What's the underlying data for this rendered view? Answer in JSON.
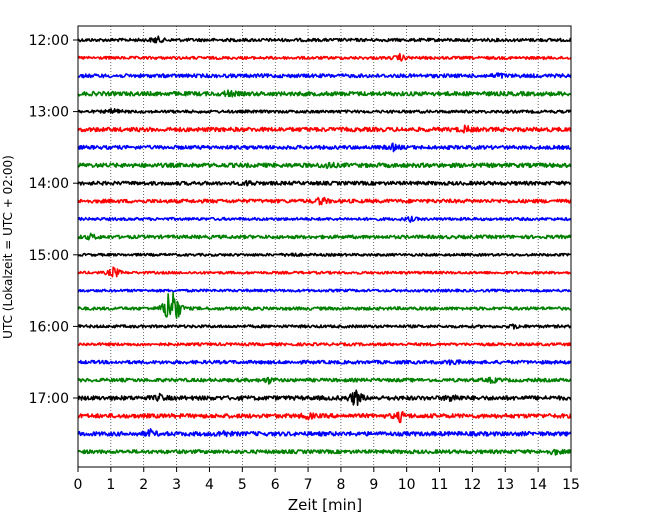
{
  "chart_data": {
    "type": "line",
    "title": "",
    "xlabel": "Zeit  [min]",
    "ylabel": "UTC (Lokalzeit = UTC + 02:00)",
    "xlim": [
      0,
      15
    ],
    "x_ticks": [
      "0",
      "1",
      "2",
      "3",
      "4",
      "5",
      "6",
      "7",
      "8",
      "9",
      "10",
      "11",
      "12",
      "13",
      "14",
      "15"
    ],
    "y_tick_labels": [
      "12:00",
      "13:00",
      "14:00",
      "15:00",
      "16:00",
      "17:00"
    ],
    "grid": "vertical dotted lines at each minute",
    "trace_interval_minutes": 15,
    "traces": [
      {
        "start": "12:00",
        "color": "#000000",
        "amplitude": 0.22,
        "events": [
          {
            "x": 2.4,
            "amp": 0.5
          }
        ]
      },
      {
        "start": "12:15",
        "color": "#ff0000",
        "amplitude": 0.2,
        "events": [
          {
            "x": 9.8,
            "amp": 0.45
          }
        ]
      },
      {
        "start": "12:30",
        "color": "#0000ff",
        "amplitude": 0.26,
        "events": [
          {
            "x": 12.8,
            "amp": 0.35
          }
        ]
      },
      {
        "start": "12:45",
        "color": "#008000",
        "amplitude": 0.3,
        "events": [
          {
            "x": 4.6,
            "amp": 0.4
          }
        ]
      },
      {
        "start": "13:00",
        "color": "#000000",
        "amplitude": 0.2,
        "events": [
          {
            "x": 1.1,
            "amp": 0.45
          }
        ]
      },
      {
        "start": "13:15",
        "color": "#ff0000",
        "amplitude": 0.3,
        "events": [
          {
            "x": 11.8,
            "amp": 0.45
          }
        ]
      },
      {
        "start": "13:30",
        "color": "#0000ff",
        "amplitude": 0.26,
        "events": [
          {
            "x": 9.6,
            "amp": 0.4
          }
        ]
      },
      {
        "start": "13:45",
        "color": "#008000",
        "amplitude": 0.3,
        "events": [
          {
            "x": 7.6,
            "amp": 0.45
          }
        ]
      },
      {
        "start": "14:00",
        "color": "#000000",
        "amplitude": 0.26,
        "events": [
          {
            "x": 5.2,
            "amp": 0.35
          }
        ]
      },
      {
        "start": "14:15",
        "color": "#ff0000",
        "amplitude": 0.26,
        "events": [
          {
            "x": 7.4,
            "amp": 0.6
          }
        ]
      },
      {
        "start": "14:30",
        "color": "#0000ff",
        "amplitude": 0.2,
        "events": [
          {
            "x": 10.1,
            "amp": 0.3
          }
        ]
      },
      {
        "start": "14:45",
        "color": "#008000",
        "amplitude": 0.24,
        "events": [
          {
            "x": 0.4,
            "amp": 0.35
          }
        ]
      },
      {
        "start": "15:00",
        "color": "#000000",
        "amplitude": 0.18,
        "events": [
          {
            "x": 6.5,
            "amp": 0.3
          }
        ]
      },
      {
        "start": "15:15",
        "color": "#ff0000",
        "amplitude": 0.18,
        "events": [
          {
            "x": 1.1,
            "amp": 0.9
          }
        ]
      },
      {
        "start": "15:30",
        "color": "#0000ff",
        "amplitude": 0.18,
        "events": []
      },
      {
        "start": "15:45",
        "color": "#008000",
        "amplitude": 0.22,
        "events": [
          {
            "x": 2.75,
            "amp": 2.4
          },
          {
            "x": 2.95,
            "amp": 2.6
          }
        ]
      },
      {
        "start": "16:00",
        "color": "#000000",
        "amplitude": 0.2,
        "events": [
          {
            "x": 13.3,
            "amp": 0.3
          }
        ]
      },
      {
        "start": "16:15",
        "color": "#ff0000",
        "amplitude": 0.2,
        "events": []
      },
      {
        "start": "16:30",
        "color": "#0000ff",
        "amplitude": 0.24,
        "events": [
          {
            "x": 11.4,
            "amp": 0.4
          }
        ]
      },
      {
        "start": "16:45",
        "color": "#008000",
        "amplitude": 0.24,
        "events": [
          {
            "x": 5.8,
            "amp": 0.4
          },
          {
            "x": 12.6,
            "amp": 0.35
          }
        ]
      },
      {
        "start": "17:00",
        "color": "#000000",
        "amplitude": 0.3,
        "events": [
          {
            "x": 8.45,
            "amp": 1.4
          },
          {
            "x": 11.4,
            "amp": 0.6
          },
          {
            "x": 2.5,
            "amp": 0.4
          }
        ]
      },
      {
        "start": "17:15",
        "color": "#ff0000",
        "amplitude": 0.3,
        "events": [
          {
            "x": 9.8,
            "amp": 0.7
          },
          {
            "x": 7.0,
            "amp": 0.4
          }
        ]
      },
      {
        "start": "17:30",
        "color": "#0000ff",
        "amplitude": 0.3,
        "events": [
          {
            "x": 2.2,
            "amp": 0.45
          },
          {
            "x": 4.4,
            "amp": 0.45
          }
        ]
      },
      {
        "start": "17:45",
        "color": "#008000",
        "amplitude": 0.26,
        "events": [
          {
            "x": 14.5,
            "amp": 0.35
          }
        ]
      }
    ]
  }
}
